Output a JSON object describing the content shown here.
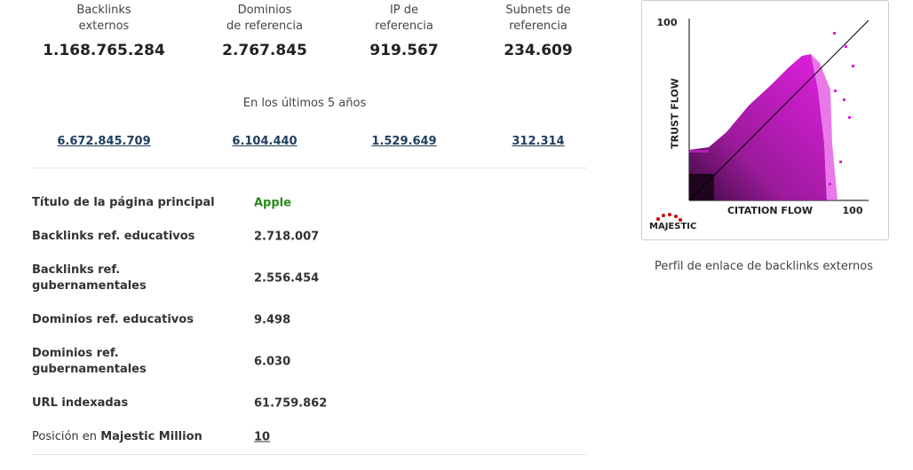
{
  "stats": [
    {
      "label": [
        "Backlinks",
        "externos"
      ],
      "value": "1.168.765.284"
    },
    {
      "label": [
        "Dominios",
        "de referencia"
      ],
      "value": "2.767.845"
    },
    {
      "label": [
        "IP de",
        "referencia"
      ],
      "value": "919.567"
    },
    {
      "label": [
        "Subnets de",
        "referencia"
      ],
      "value": "234.609"
    }
  ],
  "history": {
    "caption": "En los últimos 5 años",
    "values": [
      "6.672.845.709",
      "6.104.440",
      "1.529.649",
      "312.314"
    ]
  },
  "details": [
    {
      "label": [
        "Título de la página principal"
      ],
      "value": "Apple"
    },
    {
      "label": [
        "Backlinks ref. educativos"
      ],
      "value": "2.718.007"
    },
    {
      "label": [
        "Backlinks ref.",
        "gubernamentales"
      ],
      "value": "2.556.454"
    },
    {
      "label": [
        "Dominios ref. educativos"
      ],
      "value": "9.498"
    },
    {
      "label": [
        "Dominios ref.",
        "gubernamentales"
      ],
      "value": "6.030"
    },
    {
      "label": [
        "URL indexadas"
      ],
      "value": "61.759.862"
    }
  ],
  "rank": {
    "label": "Posición en",
    "label_bold": "Majestic Million",
    "value": "10"
  },
  "chart": {
    "y_max": "100",
    "y_label": "TRUST FLOW",
    "x_label": "CITATION FLOW",
    "x_max": "100",
    "logo": "MAJESTIC",
    "caption": "Perfil de enlace de backlinks externos"
  }
}
